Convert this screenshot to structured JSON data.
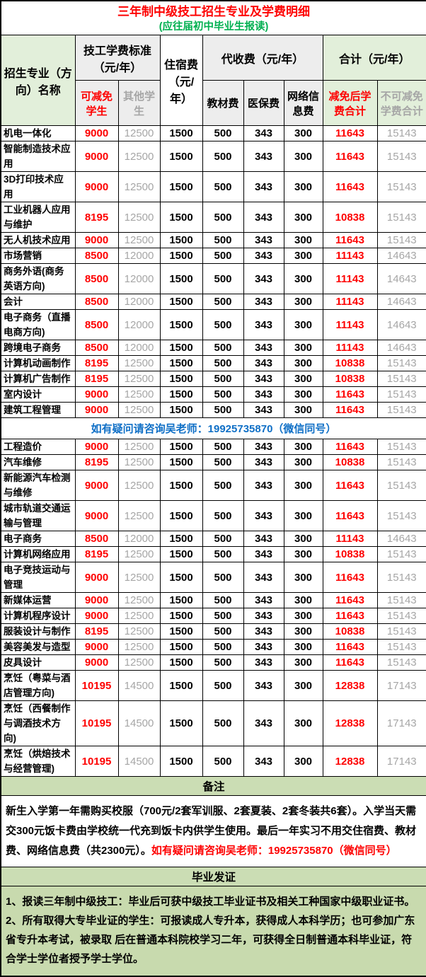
{
  "page": {
    "title": "三年制中级技工招生专业及学费明细",
    "subtitle": "(应往届初中毕业生报读)"
  },
  "colors": {
    "red": "#fe0000",
    "gray": "#a6a6a6",
    "blue": "#0f6fc6",
    "green_subtitle": "#00b050",
    "header_green_bg": "#e2efda",
    "header_gray_bg": "#ededed",
    "band_green_bg": "#cbddb4",
    "body_green_bg": "#c8daae"
  },
  "table": {
    "header": {
      "major": "招生专业（方向）名称",
      "tuition_group": "技工学费标准（元/年）",
      "tuition_reduced": "可减免学生",
      "tuition_other": "其他学生",
      "accommodation": "住宿费（元/年）",
      "collect_group": "代收费（元/年）",
      "textbook": "教材费",
      "insurance": "医保费",
      "network": "网络信息费",
      "total_group": "合计（元/年）",
      "total_reduced": "减免后学费合计",
      "total_full": "不可减免学费合计"
    },
    "contact_note": "如有疑问请咨询吴老师：19925735870（微信同号）",
    "sections": [
      {
        "rows": [
          {
            "name": "机电一体化",
            "values": [
              "9000",
              "12500",
              "1500",
              "500",
              "343",
              "300",
              "11643",
              "15143"
            ]
          },
          {
            "name": "智能制造技术应用",
            "values": [
              "9000",
              "12500",
              "1500",
              "500",
              "343",
              "300",
              "11643",
              "15143"
            ]
          },
          {
            "name": "3D打印技术应用",
            "values": [
              "9000",
              "12500",
              "1500",
              "500",
              "343",
              "300",
              "11643",
              "15143"
            ]
          },
          {
            "name": "工业机器人应用与维护",
            "values": [
              "8195",
              "12500",
              "1500",
              "500",
              "343",
              "300",
              "10838",
              "15143"
            ]
          },
          {
            "name": "无人机技术应用",
            "values": [
              "9000",
              "12500",
              "1500",
              "500",
              "343",
              "300",
              "11643",
              "15143"
            ]
          },
          {
            "name": "市场营销",
            "values": [
              "8500",
              "12000",
              "1500",
              "500",
              "343",
              "300",
              "11143",
              "14643"
            ]
          },
          {
            "name": "商务外语(商务英语方向)",
            "values": [
              "8500",
              "12000",
              "1500",
              "500",
              "343",
              "300",
              "11143",
              "14643"
            ]
          },
          {
            "name": "会计",
            "values": [
              "8500",
              "12000",
              "1500",
              "500",
              "343",
              "300",
              "11143",
              "14643"
            ]
          },
          {
            "name": "电子商务（直播电商方向)",
            "values": [
              "8500",
              "12000",
              "1500",
              "500",
              "343",
              "300",
              "11143",
              "14643"
            ]
          },
          {
            "name": "跨境电子商务",
            "values": [
              "8500",
              "12000",
              "1500",
              "500",
              "343",
              "300",
              "11143",
              "14643"
            ]
          },
          {
            "name": "计算机动画制作",
            "values": [
              "8195",
              "12500",
              "1500",
              "500",
              "343",
              "300",
              "10838",
              "15143"
            ]
          },
          {
            "name": "计算机广告制作",
            "values": [
              "8195",
              "12500",
              "1500",
              "500",
              "343",
              "300",
              "10838",
              "15143"
            ]
          },
          {
            "name": "室内设计",
            "values": [
              "9000",
              "12500",
              "1500",
              "500",
              "343",
              "300",
              "11643",
              "15143"
            ]
          },
          {
            "name": "建筑工程管理",
            "values": [
              "9000",
              "12500",
              "1500",
              "500",
              "343",
              "300",
              "11643",
              "15143"
            ]
          }
        ]
      },
      {
        "rows": [
          {
            "name": "工程造价",
            "values": [
              "9000",
              "12500",
              "1500",
              "500",
              "343",
              "300",
              "11643",
              "15143"
            ]
          },
          {
            "name": "汽车维修",
            "values": [
              "8195",
              "12500",
              "1500",
              "500",
              "343",
              "300",
              "10838",
              "15143"
            ]
          },
          {
            "name": "新能源汽车检测与维修",
            "values": [
              "9000",
              "12500",
              "1500",
              "500",
              "343",
              "300",
              "11643",
              "15143"
            ]
          },
          {
            "name": "城市轨道交通运输与管理",
            "values": [
              "9000",
              "12500",
              "1500",
              "500",
              "343",
              "300",
              "11643",
              "15143"
            ]
          },
          {
            "name": "电子商务",
            "values": [
              "8500",
              "12000",
              "1500",
              "500",
              "343",
              "300",
              "11143",
              "14643"
            ]
          },
          {
            "name": "计算机网络应用",
            "values": [
              "8195",
              "12500",
              "1500",
              "500",
              "343",
              "300",
              "10838",
              "15143"
            ]
          },
          {
            "name": "电子竞技运动与管理",
            "values": [
              "9000",
              "12500",
              "1500",
              "500",
              "343",
              "300",
              "11643",
              "15143"
            ]
          },
          {
            "name": "新媒体运营",
            "values": [
              "9000",
              "12500",
              "1500",
              "500",
              "343",
              "300",
              "11643",
              "15143"
            ]
          },
          {
            "name": "计算机程序设计",
            "values": [
              "9000",
              "12500",
              "1500",
              "500",
              "343",
              "300",
              "11643",
              "15143"
            ]
          },
          {
            "name": "服装设计与制作",
            "values": [
              "8195",
              "12500",
              "1500",
              "500",
              "343",
              "300",
              "10838",
              "15143"
            ]
          },
          {
            "name": "美容美发与造型",
            "values": [
              "9000",
              "12500",
              "1500",
              "500",
              "343",
              "300",
              "11643",
              "15143"
            ]
          },
          {
            "name": "皮具设计",
            "values": [
              "9000",
              "12500",
              "1500",
              "500",
              "343",
              "300",
              "11643",
              "15143"
            ]
          },
          {
            "name": "烹饪（粤菜与酒店管理方向)",
            "values": [
              "10195",
              "14500",
              "1500",
              "500",
              "343",
              "300",
              "12838",
              "17143"
            ]
          },
          {
            "name": "烹饪（西餐制作与调酒技术方向)",
            "values": [
              "10195",
              "14500",
              "1500",
              "500",
              "343",
              "300",
              "12838",
              "17143"
            ]
          },
          {
            "name": "烹饪（烘焙技术与经营管理)",
            "values": [
              "10195",
              "14500",
              "1500",
              "500",
              "343",
              "300",
              "12838",
              "17143"
            ]
          }
        ]
      }
    ]
  },
  "remarks": {
    "label": "备注",
    "text_black": "新生入学第一年需购买校服（700元/2套军训服、2套夏装、2套冬装共6套）。入学当天需交300元饭卡费由学校统一代充到饭卡内供学生使用。最后一年实习不用交住宿费、教材费、网络信息费（共2300元）。",
    "text_red": "如有疑问请咨询吴老师：19925735870（微信同号）"
  },
  "graduation": {
    "label": "毕业发证",
    "items": [
      "1、报读三年制中级技工：毕业后可获中级技工毕业证书及相关工种国家中级职业证书。",
      "2、所有取得大专毕业证的学生：可报读成人专升本，获得成人本科学历；也可参加广东省专升本考试，被录取 后在普通本科院校学习二年，可获得全日制普通本科毕业证，符合学士学位者授予学士学位。"
    ]
  }
}
